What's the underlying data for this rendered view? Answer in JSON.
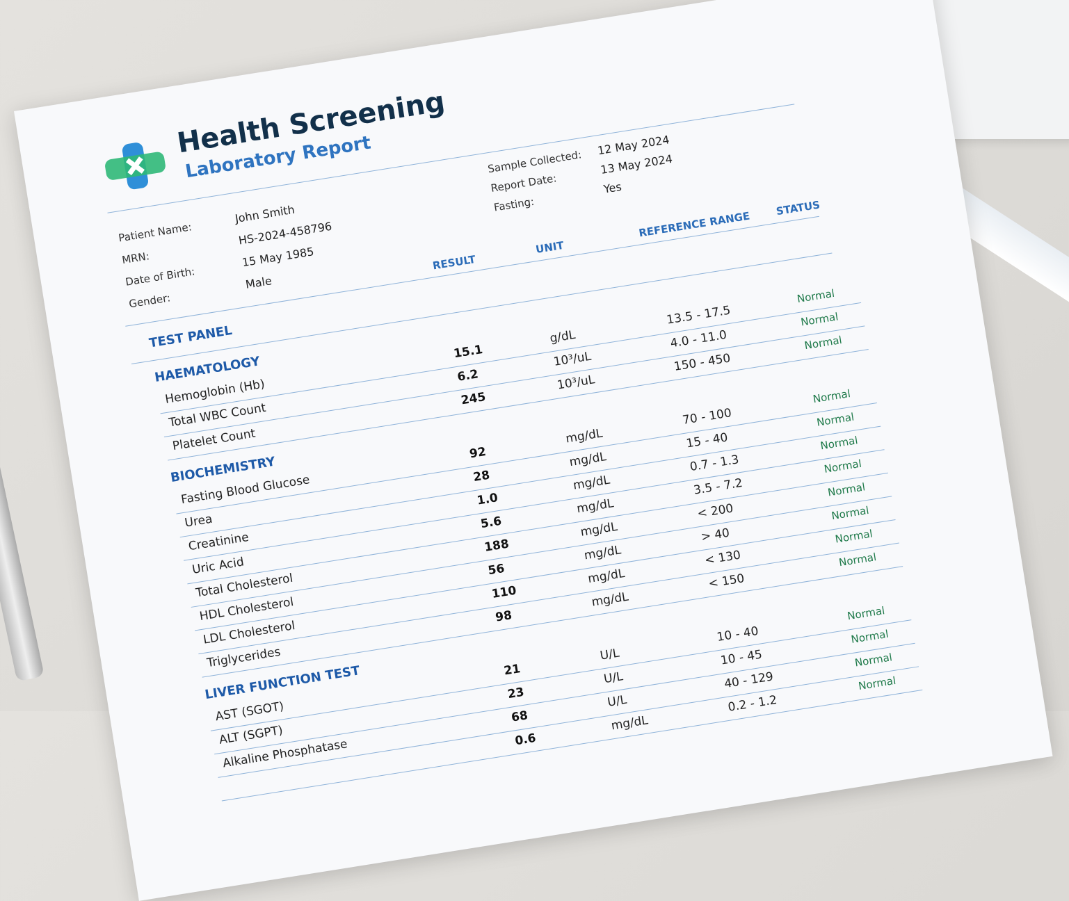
{
  "header": {
    "title": "Health Screening",
    "subtitle": "Laboratory Report"
  },
  "patient": [
    {
      "label": "Patient Name:",
      "value": "John Smith"
    },
    {
      "label": "MRN:",
      "value": "HS-2024-458796"
    },
    {
      "label": "Date of Birth:",
      "value": "15 May 1985"
    },
    {
      "label": "Gender:",
      "value": "Male"
    }
  ],
  "sample": [
    {
      "label": "Sample Collected:",
      "value": "12 May 2024"
    },
    {
      "label": "Report Date:",
      "value": "13 May 2024"
    },
    {
      "label": "Fasting:",
      "value": "Yes"
    }
  ],
  "table": {
    "columns": [
      "TEST PANEL",
      "RESULT",
      "UNIT",
      "REFERENCE RANGE",
      "STATUS"
    ],
    "sections": [
      {
        "name": "HAEMATOLOGY",
        "rows": [
          {
            "test": "Hemoglobin (Hb)",
            "result": "15.1",
            "unit": "g/dL",
            "range": "13.5 - 17.5",
            "status": "Normal"
          },
          {
            "test": "Total WBC Count",
            "result": "6.2",
            "unit": "10³/uL",
            "range": "4.0 - 11.0",
            "status": "Normal"
          },
          {
            "test": "Platelet Count",
            "result": "245",
            "unit": "10³/uL",
            "range": "150 - 450",
            "status": "Normal"
          }
        ]
      },
      {
        "name": "BIOCHEMISTRY",
        "rows": [
          {
            "test": "Fasting Blood Glucose",
            "result": "92",
            "unit": "mg/dL",
            "range": "70 - 100",
            "status": "Normal"
          },
          {
            "test": "Urea",
            "result": "28",
            "unit": "mg/dL",
            "range": "15 - 40",
            "status": "Normal"
          },
          {
            "test": "Creatinine",
            "result": "1.0",
            "unit": "mg/dL",
            "range": "0.7 - 1.3",
            "status": "Normal"
          },
          {
            "test": "Uric Acid",
            "result": "5.6",
            "unit": "mg/dL",
            "range": "3.5 - 7.2",
            "status": "Normal"
          },
          {
            "test": "Total Cholesterol",
            "result": "188",
            "unit": "mg/dL",
            "range": "< 200",
            "status": "Normal"
          },
          {
            "test": "HDL Cholesterol",
            "result": "56",
            "unit": "mg/dL",
            "range": "> 40",
            "status": "Normal"
          },
          {
            "test": "LDL Cholesterol",
            "result": "110",
            "unit": "mg/dL",
            "range": "< 130",
            "status": "Normal"
          },
          {
            "test": "Triglycerides",
            "result": "98",
            "unit": "mg/dL",
            "range": "< 150",
            "status": "Normal"
          }
        ]
      },
      {
        "name": "LIVER FUNCTION TEST",
        "rows": [
          {
            "test": "AST (SGOT)",
            "result": "21",
            "unit": "U/L",
            "range": "10 - 40",
            "status": "Normal"
          },
          {
            "test": "ALT (SGPT)",
            "result": "23",
            "unit": "U/L",
            "range": "10 - 45",
            "status": "Normal"
          },
          {
            "test": "Alkaline Phosphatase",
            "result": "68",
            "unit": "U/L",
            "range": "40 - 129",
            "status": "Normal"
          },
          {
            "test": null,
            "result": "0.6",
            "unit": "mg/dL",
            "range": "0.2 - 1.2",
            "status": "Normal"
          }
        ]
      }
    ]
  }
}
